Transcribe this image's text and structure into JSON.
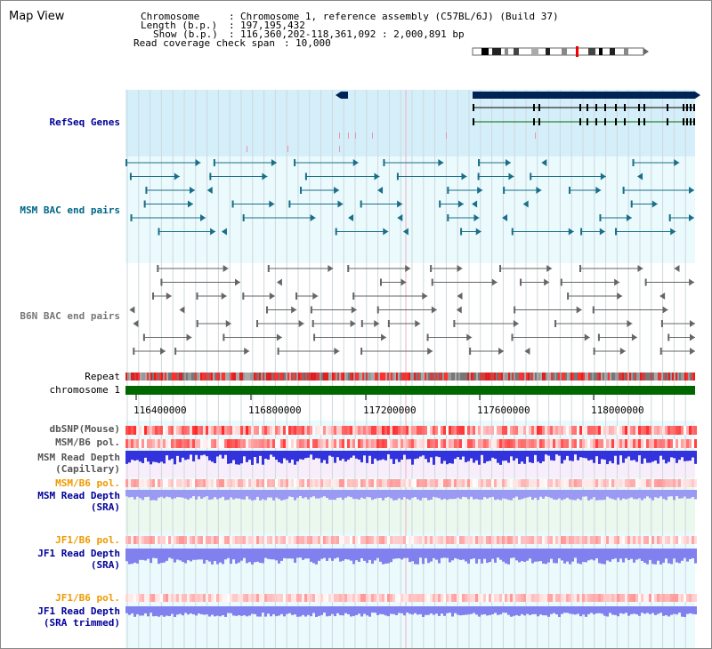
{
  "page_title": "Map View",
  "info": {
    "chromosome_label": "Chromosome",
    "chromosome_value": "Chromosome 1, reference assembly (C57BL/6J) (Build 37)",
    "length_label": "Length (b.p.)",
    "length_value": "197,195,432",
    "show_label": "Show (b.p.)",
    "show_value": "116,360,202-118,361,092 : 2,000,891 bp",
    "coverage_label": "Read coverage check span",
    "coverage_value": "10,000"
  },
  "tracks": {
    "refseq": "RefSeq Genes",
    "msm_bac": "MSM BAC end pairs",
    "b6n_bac": "B6N BAC end pairs",
    "repeat": "Repeat",
    "chromosome": "chromosome 1",
    "dbsnp": "dbSNP(Mouse)",
    "msm_b6_pol": "MSM/B6 pol.",
    "msm_depth_cap_1": "MSM Read Depth",
    "msm_depth_cap_2": "(Capillary)",
    "msm_b6_pol_2": "MSM/B6 pol.",
    "msm_depth_sra_1": "MSM Read Depth",
    "msm_depth_sra_2": "(SRA)",
    "jf1_b6_pol": "JF1/B6 pol.",
    "jf1_depth_sra_1": "JF1 Read Depth",
    "jf1_depth_sra_2": "(SRA)",
    "jf1_b6_pol_2": "JF1/B6 pol.",
    "jf1_depth_trim_1": "JF1 Read Depth",
    "jf1_depth_trim_2": "(SRA trimmed)"
  },
  "axis": {
    "ticks": [
      "116400000",
      "116800000",
      "117200000",
      "117600000",
      "118000000"
    ]
  },
  "colors": {
    "refseq_label": "#000099",
    "msm_bac_label": "#006688",
    "b6n_bac_label": "#777777",
    "orange_label": "#ee9900",
    "blue_label": "#000099",
    "refseq_bg": "#d4effa",
    "msm_bg": "#eafafd",
    "gene_fill": "#002255",
    "chromosome_bar": "#006600"
  }
}
